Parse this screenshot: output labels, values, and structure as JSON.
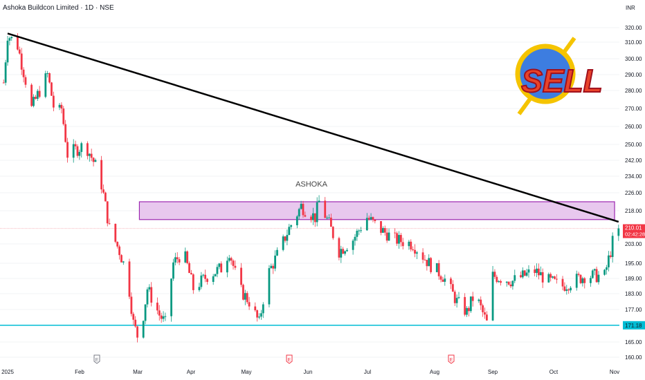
{
  "header": {
    "title": "Ashoka Buildcon Limited · 1D · NSE",
    "currency": "INR"
  },
  "chart_data": {
    "type": "candlestick",
    "y_ticks": [
      "320.00",
      "310.00",
      "300.00",
      "290.00",
      "280.00",
      "270.00",
      "260.00",
      "250.00",
      "242.00",
      "234.00",
      "226.00",
      "218.00",
      "203.00",
      "195.00",
      "189.00",
      "183.00",
      "177.00",
      "165.00",
      "160.00"
    ],
    "x_ticks": [
      "2025",
      "Feb",
      "Mar",
      "Apr",
      "May",
      "Jun",
      "Jul",
      "Aug",
      "Sep",
      "Oct",
      "Nov"
    ],
    "approx_closes": [
      [
        "2024-12-30",
        285
      ],
      [
        "2025-01-01",
        315
      ],
      [
        "2025-01-06",
        308
      ],
      [
        "2025-01-13",
        270
      ],
      [
        "2025-01-21",
        290
      ],
      [
        "2025-01-25",
        265
      ],
      [
        "2025-01-28",
        270
      ],
      [
        "2025-01-31",
        245
      ],
      [
        "2025-02-09",
        250
      ],
      [
        "2025-02-16",
        235
      ],
      [
        "2025-02-21",
        210
      ],
      [
        "2025-02-26",
        200
      ],
      [
        "2025-03-02",
        190
      ],
      [
        "2025-03-05",
        172
      ],
      [
        "2025-03-08",
        165
      ],
      [
        "2025-03-12",
        185
      ],
      [
        "2025-03-18",
        175
      ],
      [
        "2025-03-21",
        172
      ],
      [
        "2025-03-25",
        195
      ],
      [
        "2025-03-30",
        200
      ],
      [
        "2025-04-04",
        185
      ],
      [
        "2025-04-11",
        190
      ],
      [
        "2025-04-18",
        193
      ],
      [
        "2025-04-22",
        200
      ],
      [
        "2025-04-27",
        185
      ],
      [
        "2025-05-02",
        180
      ],
      [
        "2025-05-07",
        172
      ],
      [
        "2025-05-11",
        190
      ],
      [
        "2025-05-17",
        200
      ],
      [
        "2025-05-22",
        210
      ],
      [
        "2025-05-28",
        220
      ],
      [
        "2025-06-04",
        215
      ],
      [
        "2025-06-06",
        222
      ],
      [
        "2025-06-11",
        212
      ],
      [
        "2025-06-16",
        200
      ],
      [
        "2025-06-23",
        205
      ],
      [
        "2025-06-30",
        215
      ],
      [
        "2025-07-06",
        210
      ],
      [
        "2025-07-14",
        205
      ],
      [
        "2025-07-23",
        203
      ],
      [
        "2025-07-31",
        195
      ],
      [
        "2025-08-07",
        190
      ],
      [
        "2025-08-14",
        180
      ],
      [
        "2025-08-19",
        176
      ],
      [
        "2025-08-23",
        183
      ],
      [
        "2025-08-29",
        172
      ],
      [
        "2025-09-01",
        190
      ],
      [
        "2025-09-11",
        188
      ],
      [
        "2025-09-22",
        192
      ],
      [
        "2025-09-29",
        188
      ],
      [
        "2025-10-06",
        186
      ],
      [
        "2025-10-17",
        190
      ],
      [
        "2025-10-27",
        190
      ],
      [
        "2025-10-30",
        200
      ],
      [
        "2025-11-02",
        212
      ],
      [
        "2025-11-03",
        210.01
      ]
    ],
    "last_price": {
      "value": "210.01",
      "countdown": "02:42:28"
    },
    "support_line": {
      "value": "171.18"
    },
    "trendline": {
      "from": [
        "2025-01-01",
        316
      ],
      "to": [
        "2025-11-03",
        213
      ]
    },
    "resistance_zone": {
      "from_date": "2025-03-08",
      "to_date": "2025-11-01",
      "top": 222,
      "bottom": 214
    },
    "annotation": "ASHOKA",
    "earnings_markers": [
      {
        "label": "E",
        "color": "#787b86"
      },
      {
        "label": "E",
        "color": "#f23645"
      },
      {
        "label": "E",
        "color": "#f23645"
      }
    ],
    "logo_text": "SELL",
    "colors": {
      "up": "#089981",
      "down": "#f23645",
      "support": "#00bcd4",
      "zone_fill": "#e8c8ee",
      "zone_border": "#9c27b0",
      "trendline": "#000000"
    }
  }
}
